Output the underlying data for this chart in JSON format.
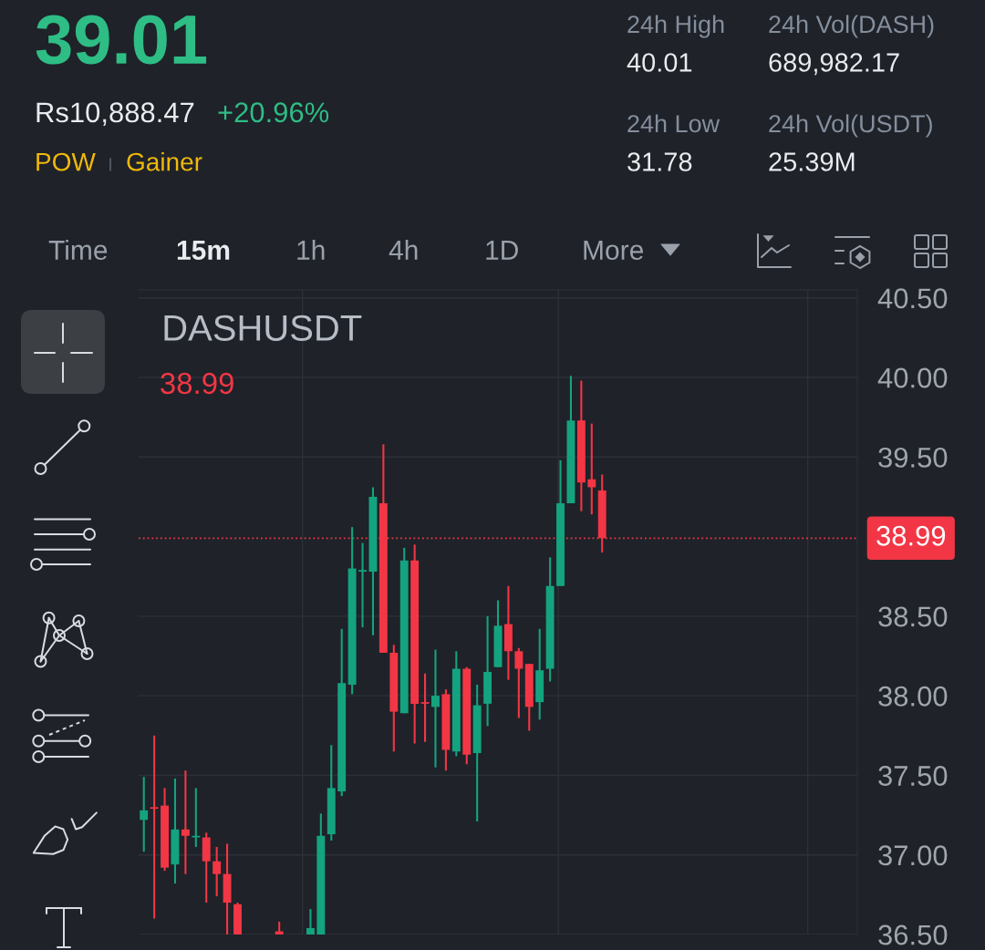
{
  "chart_data": [
    {
      "type": "other",
      "annotations": [
        "39.01",
        "Rs10,888.47",
        "+20.96%",
        "POW",
        "Gainer",
        "24h High",
        "40.01",
        "24h Vol(DASH)",
        "689,982.17",
        "24h Low",
        "31.78",
        "24h Vol(USDT)",
        "25.39M",
        "Time",
        "15m",
        "1h",
        "4h",
        "1D",
        "More"
      ]
    },
    {
      "type": "candlestick",
      "title": "DASHUSDT",
      "annotations": [
        "38.99"
      ],
      "categories": [
        null,
        null,
        null,
        null,
        null,
        null,
        null,
        null,
        null,
        null,
        null,
        null,
        null,
        null,
        null,
        null,
        null,
        null,
        null,
        null,
        null,
        null,
        null,
        null,
        null,
        null,
        null,
        null,
        null,
        null,
        null,
        null,
        null,
        null,
        null,
        null,
        null,
        null,
        null,
        null,
        null,
        null,
        null,
        null,
        null,
        null,
        null,
        null,
        null,
        null,
        null,
        null,
        null,
        null,
        null,
        null,
        null,
        null,
        null,
        null,
        null,
        null,
        null,
        null,
        null,
        null,
        null,
        null,
        null
      ],
      "ohlc": [
        [
          37.22,
          37.49,
          37.02,
          37.28
        ],
        [
          37.3,
          37.75,
          36.6,
          37.29
        ],
        [
          37.31,
          37.42,
          36.9,
          36.92
        ],
        [
          36.94,
          37.48,
          36.82,
          37.16
        ],
        [
          37.16,
          37.53,
          36.88,
          37.12
        ],
        [
          37.11,
          37.42,
          37.05,
          37.12
        ],
        [
          37.11,
          37.14,
          36.7,
          36.96
        ],
        [
          36.96,
          37.05,
          36.74,
          36.88
        ],
        [
          36.88,
          37.07,
          36.5,
          36.7
        ],
        [
          36.69,
          36.7,
          36.5,
          36.5
        ],
        null,
        null,
        null,
        [
          36.52,
          36.58,
          36.5,
          36.5
        ],
        null,
        null,
        [
          36.5,
          36.66,
          36.5,
          36.54
        ],
        [
          36.5,
          37.26,
          36.5,
          37.12
        ],
        [
          37.13,
          37.69,
          37.09,
          37.42
        ],
        [
          37.4,
          38.42,
          37.37,
          38.08
        ],
        [
          38.07,
          39.06,
          38.01,
          38.8
        ],
        [
          38.78,
          38.96,
          38.43,
          38.79
        ],
        [
          38.78,
          39.31,
          38.38,
          39.25
        ],
        [
          39.21,
          39.58,
          38.27,
          38.27
        ],
        [
          38.27,
          38.32,
          37.65,
          37.9
        ],
        [
          37.89,
          38.93,
          37.89,
          38.85
        ],
        [
          38.85,
          38.95,
          37.7,
          37.95
        ],
        [
          37.96,
          38.14,
          37.71,
          37.95
        ],
        [
          37.93,
          38.29,
          37.55,
          38.0
        ],
        [
          38.01,
          38.04,
          37.53,
          37.66
        ],
        [
          37.65,
          38.28,
          37.62,
          38.17
        ],
        [
          38.17,
          38.18,
          37.57,
          37.63
        ],
        [
          37.64,
          38.07,
          37.21,
          37.94
        ],
        [
          37.95,
          38.5,
          37.81,
          38.15
        ],
        [
          38.18,
          38.6,
          38.18,
          38.44
        ],
        [
          38.45,
          38.69,
          38.1,
          38.28
        ],
        [
          38.28,
          38.3,
          37.86,
          38.17
        ],
        [
          38.2,
          38.2,
          37.78,
          37.93
        ],
        [
          37.96,
          38.42,
          37.85,
          38.16
        ],
        [
          38.17,
          38.87,
          38.09,
          38.69
        ],
        [
          38.69,
          39.48,
          38.69,
          39.21
        ],
        [
          39.21,
          40.01,
          39.21,
          39.73
        ],
        [
          39.73,
          39.98,
          39.16,
          39.34
        ],
        [
          39.36,
          39.71,
          39.14,
          39.31
        ],
        [
          39.29,
          39.39,
          38.9,
          38.99
        ],
        null,
        null,
        null,
        null,
        null,
        null,
        null,
        null,
        null,
        null,
        null,
        null,
        null,
        null,
        null,
        null,
        null,
        null,
        null,
        null,
        null,
        null,
        null,
        null
      ],
      "colors": [
        "#14a37f",
        "#f23645",
        "#f23645",
        "#14a37f",
        "#f23645",
        "#14a37f",
        "#f23645",
        "#f23645",
        "#f23645",
        "#f23645",
        null,
        null,
        null,
        "#f23645",
        null,
        null,
        "#14a37f",
        "#14a37f",
        "#14a37f",
        "#14a37f",
        "#14a37f",
        "#14a37f",
        "#14a37f",
        "#f23645",
        "#f23645",
        "#14a37f",
        "#f23645",
        "#f23645",
        "#14a37f",
        "#f23645",
        "#14a37f",
        "#f23645",
        "#14a37f",
        "#14a37f",
        "#14a37f",
        "#f23645",
        "#f23645",
        "#f23645",
        "#14a37f",
        "#14a37f",
        "#14a37f",
        "#14a37f",
        "#f23645",
        "#f23645",
        "#f23645",
        null,
        null,
        null,
        null,
        null,
        null,
        null,
        null,
        null,
        null,
        null,
        null,
        null,
        null,
        null,
        null,
        null,
        null,
        null,
        null,
        null,
        null,
        null,
        null
      ],
      "ylim": [
        36.5,
        40.55
      ],
      "yticks": [
        {
          "value": 36.5,
          "label": "36.50"
        },
        {
          "value": 37.0,
          "label": "37.00"
        },
        {
          "value": 37.5,
          "label": "37.50"
        },
        {
          "value": 38.0,
          "label": "38.00"
        },
        {
          "value": 38.5,
          "label": "38.50"
        },
        {
          "value": 39.5,
          "label": "39.50"
        },
        {
          "value": 40.0,
          "label": "40.00"
        },
        {
          "value": 40.5,
          "label": "40.50"
        }
      ],
      "grid": "y",
      "ref_lines": [
        {
          "axis": "y",
          "value": 38.99,
          "label": "38.99",
          "color": "#f23645",
          "line_style": "dotted"
        }
      ]
    }
  ]
}
